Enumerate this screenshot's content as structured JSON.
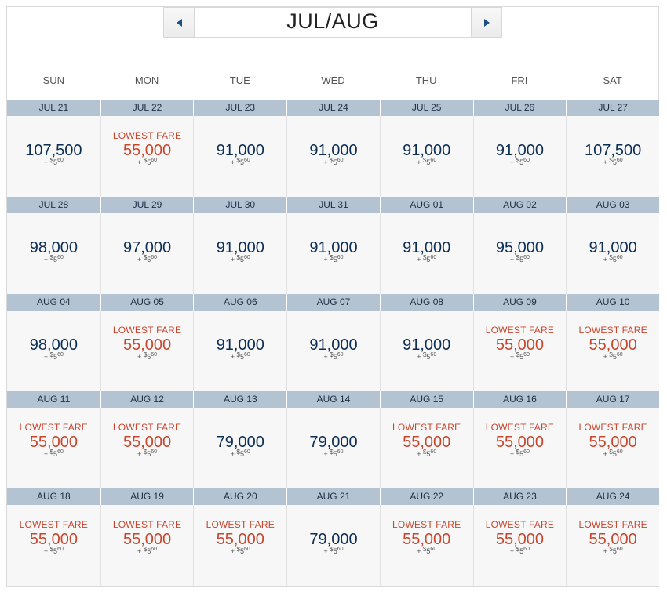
{
  "calendar": {
    "month_label": "JUL/AUG",
    "weekdays": [
      "SUN",
      "MON",
      "TUE",
      "WED",
      "THU",
      "FRI",
      "SAT"
    ],
    "lowest_label": "LOWEST FARE",
    "tax": {
      "prefix": "+ ",
      "dollar": "$",
      "whole": "5",
      "cents": "60"
    },
    "colors": {
      "header_bg": "#b4c3d2",
      "lowest": "#c8462c",
      "price": "#0c2d54"
    },
    "days": [
      {
        "date": "JUL 21",
        "price": "107,500",
        "lowest": false
      },
      {
        "date": "JUL 22",
        "price": "55,000",
        "lowest": true
      },
      {
        "date": "JUL 23",
        "price": "91,000",
        "lowest": false
      },
      {
        "date": "JUL 24",
        "price": "91,000",
        "lowest": false
      },
      {
        "date": "JUL 25",
        "price": "91,000",
        "lowest": false
      },
      {
        "date": "JUL 26",
        "price": "91,000",
        "lowest": false
      },
      {
        "date": "JUL 27",
        "price": "107,500",
        "lowest": false
      },
      {
        "date": "JUL 28",
        "price": "98,000",
        "lowest": false
      },
      {
        "date": "JUL 29",
        "price": "97,000",
        "lowest": false
      },
      {
        "date": "JUL 30",
        "price": "91,000",
        "lowest": false
      },
      {
        "date": "JUL 31",
        "price": "91,000",
        "lowest": false
      },
      {
        "date": "AUG 01",
        "price": "91,000",
        "lowest": false
      },
      {
        "date": "AUG 02",
        "price": "95,000",
        "lowest": false
      },
      {
        "date": "AUG 03",
        "price": "91,000",
        "lowest": false
      },
      {
        "date": "AUG 04",
        "price": "98,000",
        "lowest": false
      },
      {
        "date": "AUG 05",
        "price": "55,000",
        "lowest": true
      },
      {
        "date": "AUG 06",
        "price": "91,000",
        "lowest": false
      },
      {
        "date": "AUG 07",
        "price": "91,000",
        "lowest": false
      },
      {
        "date": "AUG 08",
        "price": "91,000",
        "lowest": false
      },
      {
        "date": "AUG 09",
        "price": "55,000",
        "lowest": true
      },
      {
        "date": "AUG 10",
        "price": "55,000",
        "lowest": true
      },
      {
        "date": "AUG 11",
        "price": "55,000",
        "lowest": true
      },
      {
        "date": "AUG 12",
        "price": "55,000",
        "lowest": true
      },
      {
        "date": "AUG 13",
        "price": "79,000",
        "lowest": false
      },
      {
        "date": "AUG 14",
        "price": "79,000",
        "lowest": false
      },
      {
        "date": "AUG 15",
        "price": "55,000",
        "lowest": true
      },
      {
        "date": "AUG 16",
        "price": "55,000",
        "lowest": true
      },
      {
        "date": "AUG 17",
        "price": "55,000",
        "lowest": true
      },
      {
        "date": "AUG 18",
        "price": "55,000",
        "lowest": true
      },
      {
        "date": "AUG 19",
        "price": "55,000",
        "lowest": true
      },
      {
        "date": "AUG 20",
        "price": "55,000",
        "lowest": true
      },
      {
        "date": "AUG 21",
        "price": "79,000",
        "lowest": false
      },
      {
        "date": "AUG 22",
        "price": "55,000",
        "lowest": true
      },
      {
        "date": "AUG 23",
        "price": "55,000",
        "lowest": true
      },
      {
        "date": "AUG 24",
        "price": "55,000",
        "lowest": true
      }
    ]
  }
}
